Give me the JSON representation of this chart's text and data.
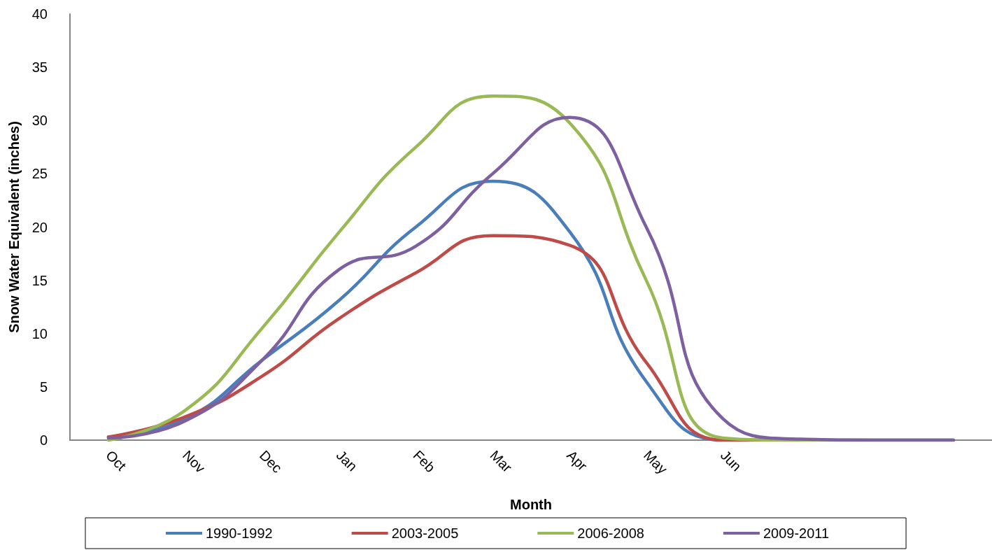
{
  "chart_data": {
    "type": "line",
    "xlabel": "Month",
    "ylabel": "Snow Water Equivalent (inches)",
    "categories": [
      "Oct",
      "Nov",
      "Dec",
      "Jan",
      "Feb",
      "Mar",
      "Apr",
      "May",
      "Jun",
      null,
      null,
      null
    ],
    "series": [
      {
        "name": "1990-1992",
        "color": "#4a7ebb",
        "values": [
          0.3,
          2.0,
          7.5,
          13.1,
          20.0,
          24.3,
          19.6,
          5.5,
          0,
          0,
          0,
          0
        ]
      },
      {
        "name": "2003-2005",
        "color": "#be4b48",
        "values": [
          0.3,
          2.2,
          6.0,
          11.4,
          15.7,
          19.2,
          18.3,
          7.3,
          0,
          0,
          null,
          null
        ]
      },
      {
        "name": "2006-2008",
        "color": "#98b954",
        "values": [
          0,
          2.8,
          10.5,
          19.5,
          27.5,
          32.3,
          29.8,
          15.0,
          0.2,
          0,
          0,
          0
        ]
      },
      {
        "name": "2009-2011",
        "color": "#7d60a0",
        "values": [
          0.2,
          1.8,
          7.5,
          16.0,
          18.2,
          25.0,
          30.3,
          20.0,
          2.0,
          0.1,
          0,
          0
        ]
      }
    ],
    "ylim": [
      0,
      40
    ],
    "yticks": [
      0,
      5,
      10,
      15,
      20,
      25,
      30,
      35,
      40
    ],
    "grid": false,
    "legend": "bottom",
    "marker": "none",
    "line_style": "solid"
  }
}
